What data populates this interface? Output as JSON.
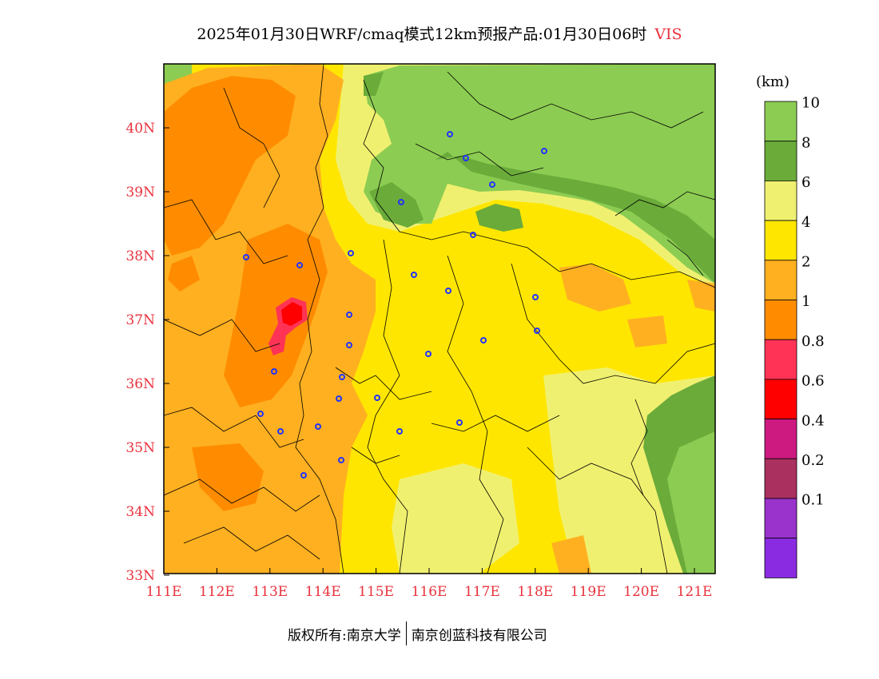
{
  "title": "2025年01月30日WRF/cmaq模式12km预报产品:01月30日06时",
  "variable": "VIS",
  "colorbar": {
    "unit": "(km)",
    "labels": [
      "10",
      "8",
      "6",
      "4",
      "2",
      "1",
      "0.8",
      "0.6",
      "0.4",
      "0.2",
      "0.1"
    ],
    "colors": [
      "#8ccc52",
      "#6aab3a",
      "#f0f070",
      "#ffe600",
      "#ffb020",
      "#ff8c00",
      "#ff3355",
      "#ff0000",
      "#cc1a80",
      "#aa3060",
      "#9933cc",
      "#8a2be2"
    ]
  },
  "axes": {
    "lat_labels": [
      "40N",
      "39N",
      "38N",
      "37N",
      "36N",
      "35N",
      "34N",
      "33N"
    ],
    "lon_labels": [
      "111E",
      "112E",
      "113E",
      "114E",
      "115E",
      "116E",
      "117E",
      "118E",
      "119E",
      "120E",
      "121E"
    ]
  },
  "footer": {
    "left": "版权所有:南京大学",
    "right": "南京创蓝科技有限公司"
  }
}
